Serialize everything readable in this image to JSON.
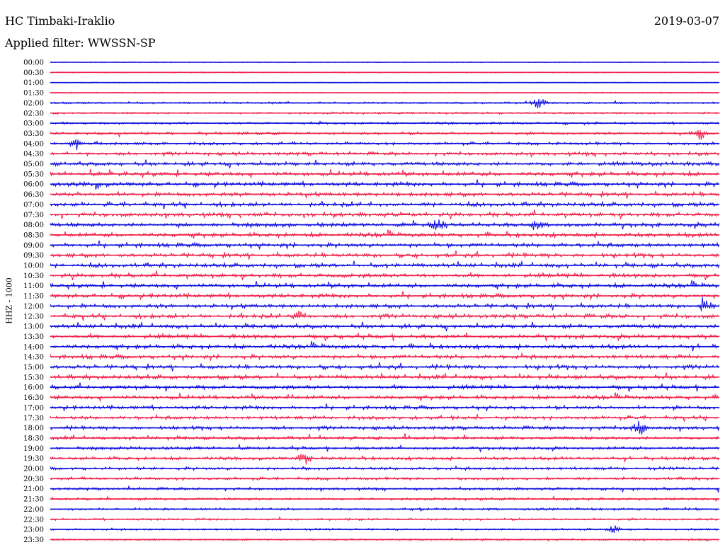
{
  "header": {
    "station": "HC Timbaki-Iraklio",
    "date": "2019-03-07",
    "filter": "Applied filter: WWSSN-SP"
  },
  "channel_label": "HHZ - 1000",
  "colors": {
    "trace_a": "#1010e0",
    "trace_b": "#f0204a"
  },
  "chart_data": {
    "type": "line",
    "title": "HC Timbaki-Iraklio",
    "subtitle": "Applied filter: WWSSN-SP",
    "ylabel": "HHZ - 1000",
    "grid": false,
    "legend": "none",
    "rows": [
      "00:00",
      "00:30",
      "01:00",
      "01:30",
      "02:00",
      "02:30",
      "03:00",
      "03:30",
      "04:00",
      "04:30",
      "05:00",
      "05:30",
      "06:00",
      "06:30",
      "07:00",
      "07:30",
      "08:00",
      "08:30",
      "09:00",
      "09:30",
      "10:00",
      "10:30",
      "11:00",
      "11:30",
      "12:00",
      "12:30",
      "13:00",
      "13:30",
      "14:00",
      "14:30",
      "15:00",
      "15:30",
      "16:00",
      "16:30",
      "17:00",
      "17:30",
      "18:00",
      "18:30",
      "19:00",
      "19:30",
      "20:00",
      "20:30",
      "21:00",
      "21:30",
      "22:00",
      "22:30",
      "23:00",
      "23:30"
    ],
    "row_noise_level": [
      0.05,
      0.1,
      0.05,
      0.1,
      0.3,
      0.35,
      0.45,
      0.55,
      0.6,
      0.75,
      0.9,
      1.0,
      1.0,
      1.0,
      1.0,
      1.0,
      1.0,
      1.0,
      1.0,
      1.0,
      1.0,
      1.0,
      1.0,
      1.0,
      1.0,
      1.0,
      1.0,
      1.0,
      1.0,
      1.0,
      1.0,
      1.0,
      0.95,
      0.9,
      0.85,
      0.8,
      0.8,
      0.75,
      0.7,
      0.7,
      0.65,
      0.6,
      0.55,
      0.5,
      0.45,
      0.4,
      0.35,
      0.3
    ],
    "events": [
      {
        "row": "02:00",
        "at": 0.73,
        "amp": 12
      },
      {
        "row": "04:00",
        "at": 0.04,
        "amp": 10
      },
      {
        "row": "03:30",
        "at": 0.97,
        "amp": 12
      },
      {
        "row": "08:00",
        "at": 0.58,
        "amp": 14
      },
      {
        "row": "08:00",
        "at": 0.73,
        "amp": 12
      },
      {
        "row": "12:00",
        "at": 0.98,
        "amp": 12
      },
      {
        "row": "12:30",
        "at": 0.37,
        "amp": 12
      },
      {
        "row": "18:00",
        "at": 0.88,
        "amp": 14
      },
      {
        "row": "19:30",
        "at": 0.38,
        "amp": 12
      },
      {
        "row": "23:00",
        "at": 0.84,
        "amp": 10
      }
    ]
  }
}
